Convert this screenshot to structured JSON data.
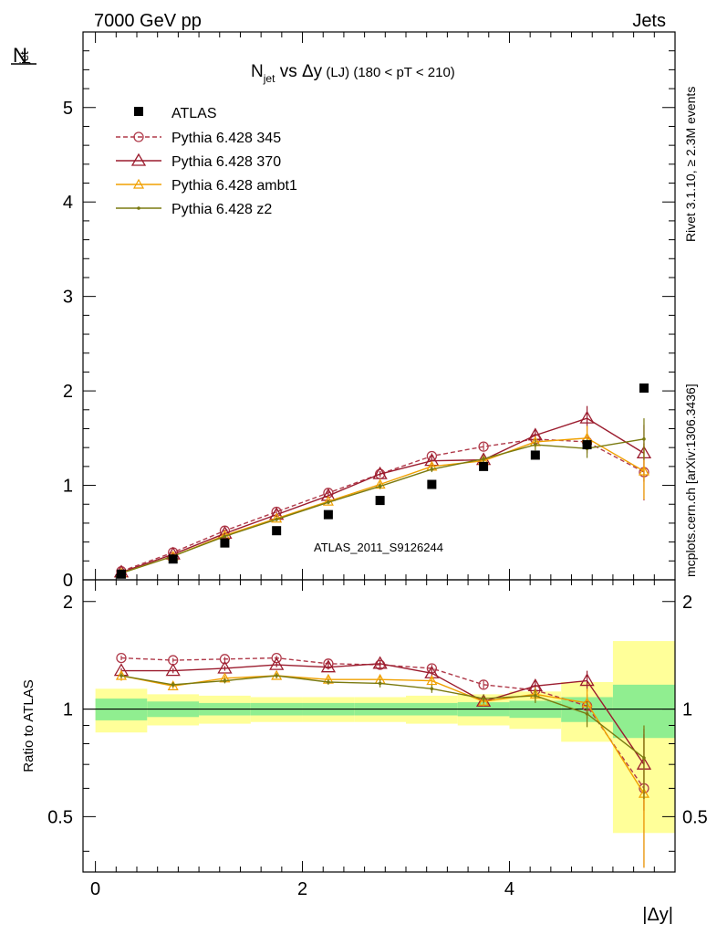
{
  "header": {
    "left": "7000 GeV pp",
    "right": "Jets"
  },
  "side_labels": {
    "rivet": "Rivet 3.1.10, ≥ 2.3M events",
    "mcplots": "mcplots.cern.ch [arXiv:1306.3436]"
  },
  "chart_data": {
    "type": "scatter",
    "title_main": "N",
    "title_sub": "jet",
    "title_rest": " vs Δy",
    "title_small": " (LJ)",
    "title_cut": " (180 < pT < 210)",
    "ylabel_main": "N",
    "ylabel_sub": "jet",
    "xlabel": "|Δy|",
    "ratio_ylabel": "Ratio to ATLAS",
    "watermark": "ATLAS_2011_S9126244",
    "xlim": [
      -0.12,
      5.6
    ],
    "ylim": [
      0,
      5.8
    ],
    "ratio_ylim": [
      0.35,
      2.3
    ],
    "x_ticks": [
      0,
      2,
      4
    ],
    "y_ticks": [
      0,
      1,
      2,
      3,
      4,
      5
    ],
    "ratio_ticks": [
      0.5,
      1,
      2
    ],
    "x_tick_labels": [
      "0",
      "2",
      "4"
    ],
    "y_tick_labels": [
      "0",
      "1",
      "2",
      "3",
      "4",
      "5"
    ],
    "ratio_tick_labels": [
      "0.5",
      "1",
      "2"
    ],
    "x": [
      0.25,
      0.75,
      1.25,
      1.75,
      2.25,
      2.75,
      3.25,
      3.75,
      4.25,
      4.75,
      5.3
    ],
    "x_edges": [
      0,
      0.5,
      1.0,
      1.5,
      2.0,
      2.5,
      3.0,
      3.5,
      4.0,
      4.5,
      5.0,
      5.6
    ],
    "data": {
      "name": "ATLAS",
      "values": [
        0.06,
        0.22,
        0.39,
        0.52,
        0.69,
        0.84,
        1.01,
        1.2,
        1.32,
        1.43,
        2.03
      ],
      "band_inner": [
        0.07,
        0.05,
        0.04,
        0.04,
        0.04,
        0.04,
        0.04,
        0.045,
        0.055,
        0.08,
        0.17
      ],
      "band_outer": [
        0.14,
        0.1,
        0.09,
        0.08,
        0.08,
        0.08,
        0.09,
        0.1,
        0.12,
        0.19,
        0.55
      ]
    },
    "series": [
      {
        "name": "Pythia 6.428 345",
        "color": "#b03a4a",
        "marker": "circle",
        "dashed": true,
        "values": [
          0.09,
          0.29,
          0.52,
          0.72,
          0.92,
          1.12,
          1.31,
          1.41,
          1.49,
          1.46,
          1.14
        ],
        "errors": [
          0.01,
          0.01,
          0.01,
          0.02,
          0.02,
          0.03,
          0.03,
          0.04,
          0.06,
          0.12,
          0.3
        ],
        "ratio": [
          1.39,
          1.37,
          1.38,
          1.39,
          1.34,
          1.33,
          1.3,
          1.17,
          1.13,
          1.02,
          0.6
        ],
        "ratio_err": [
          0.02,
          0.02,
          0.02,
          0.02,
          0.02,
          0.03,
          0.03,
          0.03,
          0.04,
          0.08,
          0.25
        ]
      },
      {
        "name": "Pythia 6.428 370",
        "color": "#9b1c2e",
        "marker": "triangle",
        "dashed": false,
        "values": [
          0.08,
          0.27,
          0.49,
          0.69,
          0.89,
          1.12,
          1.26,
          1.27,
          1.53,
          1.71,
          1.34
        ],
        "errors": [
          0.01,
          0.01,
          0.01,
          0.02,
          0.02,
          0.03,
          0.03,
          0.04,
          0.07,
          0.13,
          0.3
        ],
        "ratio": [
          1.28,
          1.28,
          1.3,
          1.33,
          1.31,
          1.34,
          1.26,
          1.05,
          1.16,
          1.2,
          0.7
        ],
        "ratio_err": [
          0.02,
          0.02,
          0.02,
          0.02,
          0.02,
          0.03,
          0.03,
          0.03,
          0.05,
          0.08,
          0.18
        ]
      },
      {
        "name": "Pythia 6.428 ambt1",
        "color": "#f0a000",
        "marker": "triangle-small",
        "dashed": false,
        "values": [
          0.07,
          0.25,
          0.47,
          0.65,
          0.83,
          1.01,
          1.2,
          1.26,
          1.46,
          1.5,
          1.15
        ],
        "errors": [
          0.01,
          0.01,
          0.01,
          0.02,
          0.02,
          0.03,
          0.03,
          0.04,
          0.06,
          0.13,
          0.3
        ],
        "ratio": [
          1.24,
          1.16,
          1.22,
          1.24,
          1.21,
          1.21,
          1.2,
          1.05,
          1.1,
          1.04,
          0.58
        ],
        "ratio_err": [
          0.04,
          0.02,
          0.02,
          0.02,
          0.02,
          0.03,
          0.03,
          0.03,
          0.05,
          0.1,
          0.25
        ]
      },
      {
        "name": "Pythia 6.428 z2",
        "color": "#7a7a10",
        "marker": "dot",
        "dashed": false,
        "values": [
          0.07,
          0.25,
          0.46,
          0.64,
          0.82,
          0.99,
          1.17,
          1.28,
          1.43,
          1.39,
          1.49
        ],
        "errors": [
          0.01,
          0.01,
          0.01,
          0.02,
          0.02,
          0.03,
          0.03,
          0.04,
          0.06,
          0.1,
          0.22
        ],
        "ratio": [
          1.24,
          1.17,
          1.2,
          1.24,
          1.19,
          1.18,
          1.14,
          1.07,
          1.09,
          0.97,
          0.73
        ],
        "ratio_err": [
          0.02,
          0.02,
          0.02,
          0.02,
          0.02,
          0.03,
          0.03,
          0.03,
          0.05,
          0.08,
          0.17
        ]
      }
    ],
    "legend_position": "top-left",
    "band_colors": {
      "inner": "#90ee90",
      "outer": "#ffff99"
    }
  }
}
